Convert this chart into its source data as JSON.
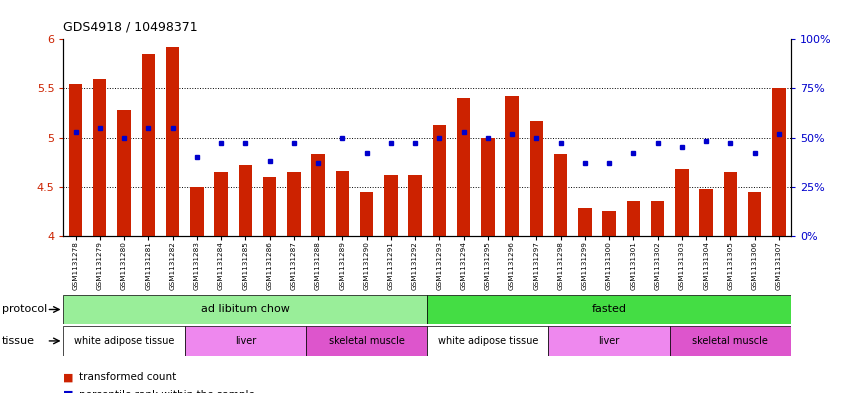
{
  "title": "GDS4918 / 10498371",
  "samples": [
    "GSM1131278",
    "GSM1131279",
    "GSM1131280",
    "GSM1131281",
    "GSM1131282",
    "GSM1131283",
    "GSM1131284",
    "GSM1131285",
    "GSM1131286",
    "GSM1131287",
    "GSM1131288",
    "GSM1131289",
    "GSM1131290",
    "GSM1131291",
    "GSM1131292",
    "GSM1131293",
    "GSM1131294",
    "GSM1131295",
    "GSM1131296",
    "GSM1131297",
    "GSM1131298",
    "GSM1131299",
    "GSM1131300",
    "GSM1131301",
    "GSM1131302",
    "GSM1131303",
    "GSM1131304",
    "GSM1131305",
    "GSM1131306",
    "GSM1131307"
  ],
  "bar_values": [
    5.55,
    5.6,
    5.28,
    5.85,
    5.92,
    4.5,
    4.65,
    4.72,
    4.6,
    4.65,
    4.83,
    4.66,
    4.45,
    4.62,
    4.62,
    5.13,
    5.4,
    5.0,
    5.42,
    5.17,
    4.83,
    4.28,
    4.25,
    4.35,
    4.35,
    4.68,
    4.48,
    4.65,
    4.45,
    5.5
  ],
  "blue_values": [
    53,
    55,
    50,
    55,
    55,
    40,
    47,
    47,
    38,
    47,
    37,
    50,
    42,
    47,
    47,
    50,
    53,
    50,
    52,
    50,
    47,
    37,
    37,
    42,
    47,
    45,
    48,
    47,
    42,
    52
  ],
  "ylim_left": [
    4,
    6
  ],
  "ylim_right": [
    0,
    100
  ],
  "bar_color": "#CC2200",
  "blue_color": "#0000CC",
  "yticks_left": [
    4,
    4.5,
    5,
    5.5,
    6
  ],
  "yticks_right": [
    0,
    25,
    50,
    75,
    100
  ],
  "ytick_labels_left": [
    "4",
    "4.5",
    "5",
    "5.5",
    "6"
  ],
  "ytick_labels_right": [
    "0%",
    "25%",
    "50%",
    "75%",
    "100%"
  ],
  "hlines": [
    4.5,
    5.0,
    5.5
  ],
  "protocols": [
    {
      "label": "ad libitum chow",
      "start": 0,
      "end": 15,
      "color": "#99EE99"
    },
    {
      "label": "fasted",
      "start": 15,
      "end": 30,
      "color": "#44DD44"
    }
  ],
  "tissues": [
    {
      "label": "white adipose tissue",
      "start": 0,
      "end": 5,
      "color": "#FFFFFF"
    },
    {
      "label": "liver",
      "start": 5,
      "end": 10,
      "color": "#EE88EE"
    },
    {
      "label": "skeletal muscle",
      "start": 10,
      "end": 15,
      "color": "#DD66CC"
    },
    {
      "label": "white adipose tissue",
      "start": 15,
      "end": 20,
      "color": "#FFFFFF"
    },
    {
      "label": "liver",
      "start": 20,
      "end": 25,
      "color": "#EE88EE"
    },
    {
      "label": "skeletal muscle",
      "start": 25,
      "end": 30,
      "color": "#DD66CC"
    }
  ]
}
